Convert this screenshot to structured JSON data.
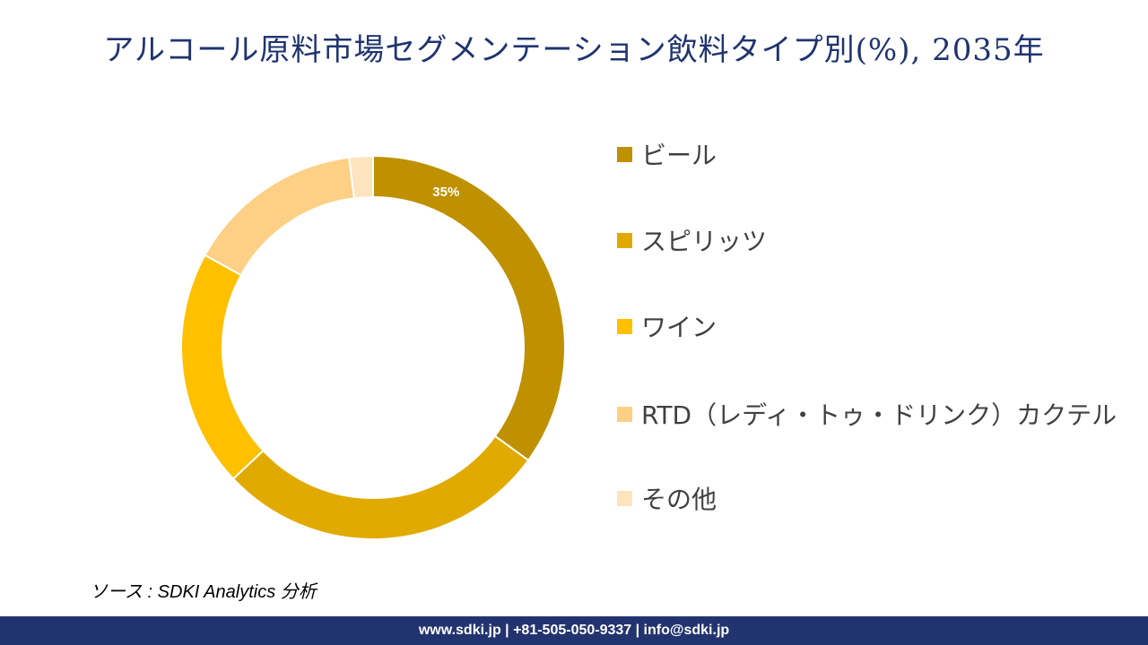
{
  "title": "アルコール原料市場セグメンテーション飲料タイプ別(%), 2035年",
  "chart_data": {
    "type": "pie",
    "donut": true,
    "categories": [
      "ビール",
      "スピリッツ",
      "ワイン",
      "RTD（レディ・トゥ・ドリンク）カクテル",
      "その他"
    ],
    "values": [
      35,
      28,
      20,
      15,
      2
    ],
    "data_labels": [
      "35%",
      "",
      "",
      "",
      ""
    ],
    "colors": [
      "#bf9000",
      "#e1aa00",
      "#ffc000",
      "#fdd085",
      "#fde4be"
    ],
    "legend_position": "right"
  },
  "source": "ソース : SDKI Analytics 分析",
  "footer": "www.sdki.jp | +81-505-050-9337 | info@sdki.jp"
}
